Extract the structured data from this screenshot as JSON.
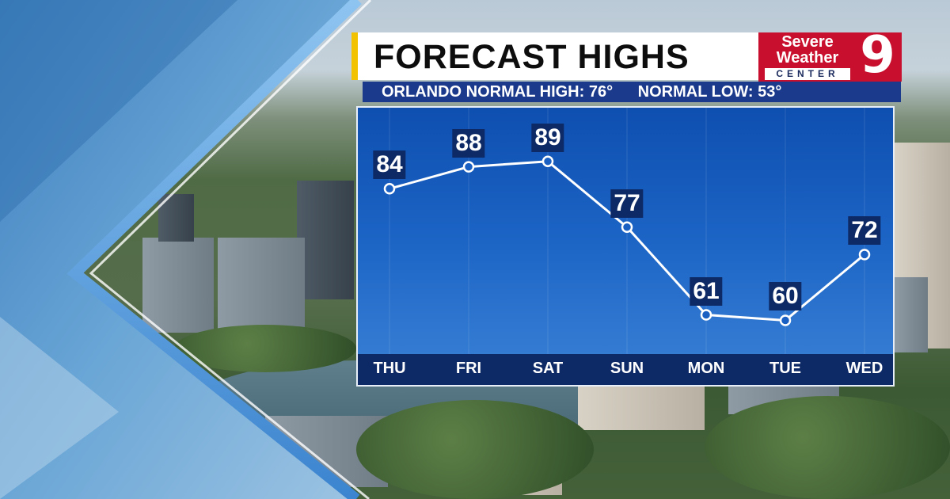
{
  "header": {
    "title": "FORECAST HIGHS",
    "normal_high": "ORLANDO NORMAL HIGH: 76°",
    "normal_low": "NORMAL LOW: 53°"
  },
  "logo": {
    "line1": "Severe",
    "line2": "Weather",
    "line3": "CENTER",
    "number": "9"
  },
  "colors": {
    "chart_bg_top": "#0e4fb0",
    "label_bg": "#0e2a66",
    "logo_red": "#c8102e",
    "title_accent": "#f2c200"
  },
  "chart_data": {
    "type": "line",
    "categories": [
      "THU",
      "FRI",
      "SAT",
      "SUN",
      "MON",
      "TUE",
      "WED"
    ],
    "values": [
      84,
      88,
      89,
      77,
      61,
      60,
      72
    ],
    "title": "FORECAST HIGHS",
    "grid": "vertical",
    "ylim": [
      54,
      93
    ]
  }
}
